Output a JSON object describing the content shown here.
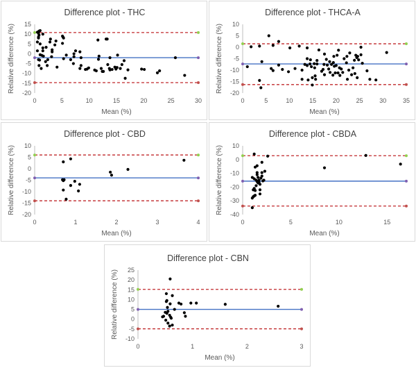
{
  "colors": {
    "points": "#000000",
    "mean_line": "#4472C4",
    "limit_lines": "#C0282B",
    "upper_marker": "#92D050",
    "mean_marker": "#7F5FB0",
    "lower_marker": "#C0504D",
    "axis": "#BFBFBF"
  },
  "chart_data": [
    {
      "type": "scatter",
      "title": "Difference plot - THC",
      "xlabel": "Mean (%)",
      "ylabel": "Relative difference (%)",
      "xlim": [
        0,
        30
      ],
      "xticks": [
        0,
        5,
        10,
        15,
        20,
        25,
        30
      ],
      "ylim": [
        -20,
        15
      ],
      "yticks": [
        -20,
        -15,
        -10,
        -5,
        0,
        5,
        10,
        15
      ],
      "grid": false,
      "mean": -2,
      "upper_limit": 10.8,
      "lower_limit": -14.7,
      "points": [
        [
          0.5,
          11
        ],
        [
          0.8,
          11.5
        ],
        [
          1,
          11.8
        ],
        [
          0.7,
          10.5
        ],
        [
          0.8,
          9.5
        ],
        [
          0.7,
          8.5
        ],
        [
          0.7,
          8
        ],
        [
          1.5,
          10
        ],
        [
          0.5,
          6
        ],
        [
          1,
          5
        ],
        [
          0.5,
          1.5
        ],
        [
          1.5,
          3
        ],
        [
          2.1,
          3.3
        ],
        [
          1.5,
          1.5
        ],
        [
          1,
          -0.5
        ],
        [
          1.3,
          -0.8
        ],
        [
          1.6,
          -1.2
        ],
        [
          0.7,
          -3
        ],
        [
          0.9,
          -3.2
        ],
        [
          0.8,
          -6
        ],
        [
          1.2,
          -7.5
        ],
        [
          2,
          -4
        ],
        [
          2.4,
          -3
        ],
        [
          2.3,
          -6
        ],
        [
          2.8,
          6
        ],
        [
          2.9,
          7.5
        ],
        [
          3.2,
          2
        ],
        [
          3.2,
          1
        ],
        [
          3.1,
          -1.5
        ],
        [
          3.7,
          4.5
        ],
        [
          3.9,
          6.5
        ],
        [
          4.1,
          -6.8
        ],
        [
          5.1,
          9
        ],
        [
          5.2,
          8.5
        ],
        [
          5.3,
          8
        ],
        [
          5.1,
          5.3
        ],
        [
          5.3,
          -2.5
        ],
        [
          5.8,
          -0.7
        ],
        [
          6.6,
          -3
        ],
        [
          7.1,
          -5
        ],
        [
          7.2,
          0
        ],
        [
          7.2,
          -1.5
        ],
        [
          7.5,
          1.5
        ],
        [
          8.3,
          1
        ],
        [
          8.5,
          -2
        ],
        [
          8.5,
          -6
        ],
        [
          8.3,
          -7.5
        ],
        [
          9.3,
          -8
        ],
        [
          9.6,
          -7.8
        ],
        [
          9.9,
          -7.2
        ],
        [
          11,
          -8.3
        ],
        [
          11.3,
          -8.7
        ],
        [
          11.6,
          7
        ],
        [
          11.7,
          -2.8
        ],
        [
          11.8,
          -1.2
        ],
        [
          12.2,
          -7.5
        ],
        [
          12.4,
          -9
        ],
        [
          12.6,
          -9
        ],
        [
          13.1,
          7.5
        ],
        [
          13.3,
          7.5
        ],
        [
          13.4,
          -5.5
        ],
        [
          13.7,
          -7.5
        ],
        [
          13.8,
          -8.2
        ],
        [
          13.8,
          -2
        ],
        [
          14.2,
          -8
        ],
        [
          14.7,
          -6.8
        ],
        [
          14.9,
          -7.8
        ],
        [
          15.1,
          -7
        ],
        [
          15.2,
          -0.7
        ],
        [
          15.7,
          -7.5
        ],
        [
          16,
          -5.5
        ],
        [
          16.4,
          -3.5
        ],
        [
          16.6,
          -12.5
        ],
        [
          17.1,
          -8.2
        ],
        [
          19.6,
          -7.8
        ],
        [
          20.1,
          -8
        ],
        [
          22.5,
          -9.7
        ],
        [
          22.9,
          -8.7
        ],
        [
          25.8,
          -2
        ],
        [
          27.5,
          -11
        ]
      ]
    },
    {
      "type": "scatter",
      "title": "Difference plot - THCA-A",
      "xlabel": "Mean (%)",
      "ylabel": "Relative difference (%)",
      "xlim": [
        0,
        35
      ],
      "xticks": [
        0,
        5,
        10,
        15,
        20,
        25,
        30,
        35
      ],
      "ylim": [
        -20,
        10
      ],
      "yticks": [
        -20,
        -15,
        -10,
        -5,
        0,
        5,
        10
      ],
      "grid": false,
      "mean": -7.3,
      "upper_limit": 1.5,
      "lower_limit": -16.3,
      "points": [
        [
          1,
          -8.5
        ],
        [
          1.8,
          0.2
        ],
        [
          3.6,
          0.5
        ],
        [
          3.6,
          -14.5
        ],
        [
          3.9,
          -17.7
        ],
        [
          4.1,
          -6.3
        ],
        [
          5.6,
          5
        ],
        [
          6.1,
          -9.3
        ],
        [
          6.5,
          0.8
        ],
        [
          6.5,
          -10.2
        ],
        [
          7.7,
          2.5
        ],
        [
          7.7,
          -7.8
        ],
        [
          8.5,
          -9.7
        ],
        [
          9.8,
          -10.7
        ],
        [
          10.1,
          -0.3
        ],
        [
          11.2,
          -9.3
        ],
        [
          12.1,
          0.5
        ],
        [
          12.7,
          -10
        ],
        [
          12.7,
          -14
        ],
        [
          13.3,
          -7.5
        ],
        [
          13.8,
          -0.3
        ],
        [
          13.8,
          -5
        ],
        [
          13.8,
          -8
        ],
        [
          14,
          -14.3
        ],
        [
          14.4,
          -7.3
        ],
        [
          14.5,
          -5.5
        ],
        [
          14.7,
          -8.5
        ],
        [
          14.9,
          -13.3
        ],
        [
          14.9,
          -16.5
        ],
        [
          15.3,
          -7.2
        ],
        [
          15.4,
          -9
        ],
        [
          15.5,
          -12.5
        ],
        [
          15.6,
          -14
        ],
        [
          15.9,
          -7.3
        ],
        [
          15.9,
          -5.8
        ],
        [
          16.3,
          -1.2
        ],
        [
          16.9,
          -10.5
        ],
        [
          17.2,
          -9.7
        ],
        [
          17.4,
          -7.5
        ],
        [
          17.5,
          -12
        ],
        [
          17.5,
          -3
        ],
        [
          17.9,
          -5.3
        ],
        [
          18.1,
          -7.8
        ],
        [
          18.4,
          -9.5
        ],
        [
          18.6,
          -6.3
        ],
        [
          18.7,
          -11
        ],
        [
          19,
          -7.5
        ],
        [
          19.3,
          -12.2
        ],
        [
          19.4,
          -6.7
        ],
        [
          19.5,
          -4
        ],
        [
          19.6,
          -8.3
        ],
        [
          19.8,
          -11.2
        ],
        [
          20,
          -8
        ],
        [
          20.2,
          -3.5
        ],
        [
          20.4,
          -11.2
        ],
        [
          20.5,
          -1.3
        ],
        [
          20.7,
          -9
        ],
        [
          20.8,
          -12.3
        ],
        [
          21.1,
          -9.5
        ],
        [
          21.4,
          -11
        ],
        [
          21.7,
          -5
        ],
        [
          22.2,
          -6.8
        ],
        [
          22.3,
          -4
        ],
        [
          22.4,
          -14
        ],
        [
          22.7,
          -10
        ],
        [
          22.9,
          -2.5
        ],
        [
          23.3,
          -12
        ],
        [
          23.6,
          -9
        ],
        [
          23.9,
          -5.7
        ],
        [
          24,
          -11.5
        ],
        [
          24.2,
          -3.5
        ],
        [
          24.4,
          -4.5
        ],
        [
          24.5,
          -13.3
        ],
        [
          24.6,
          -4
        ],
        [
          24.8,
          -5.5
        ],
        [
          25.3,
          0
        ],
        [
          25.3,
          -3.3
        ],
        [
          25.6,
          -7
        ],
        [
          26.6,
          -10.3
        ],
        [
          27.2,
          -14
        ],
        [
          28.5,
          -14.3
        ],
        [
          30.8,
          -2.3
        ]
      ]
    },
    {
      "type": "scatter",
      "title": "Difference plot - CBD",
      "xlabel": "Mean (%)",
      "ylabel": "Relative difference (%)",
      "xlim": [
        0,
        4
      ],
      "xticks": [
        0,
        1,
        2,
        3,
        4
      ],
      "ylim": [
        -20,
        10
      ],
      "yticks": [
        -20,
        -15,
        -10,
        -5,
        0,
        5,
        10
      ],
      "grid": false,
      "mean": -4,
      "upper_limit": 6,
      "lower_limit": -14,
      "points": [
        [
          0.7,
          3
        ],
        [
          0.68,
          -4.8
        ],
        [
          0.7,
          -5.2
        ],
        [
          0.72,
          -4.8
        ],
        [
          0.7,
          -9.3
        ],
        [
          0.77,
          -13.3
        ],
        [
          0.88,
          4.3
        ],
        [
          0.88,
          -7.3
        ],
        [
          0.98,
          -5.5
        ],
        [
          1.07,
          -9.7
        ],
        [
          1.1,
          -6.8
        ],
        [
          1.85,
          -1.5
        ],
        [
          1.88,
          -2.8
        ],
        [
          2.28,
          -0.3
        ],
        [
          3.65,
          3.7
        ]
      ]
    },
    {
      "type": "scatter",
      "title": "Difference plot - CBDA",
      "xlabel": "Mean (%)",
      "ylabel": "Relative difference (%)",
      "xlim": [
        0,
        17
      ],
      "xticks": [
        0,
        5,
        10,
        15
      ],
      "ylim": [
        -40,
        10
      ],
      "yticks": [
        -40,
        -30,
        -20,
        -10,
        0,
        10
      ],
      "grid": false,
      "mean": -15.7,
      "upper_limit": 2.8,
      "lower_limit": -33.8,
      "points": [
        [
          1.2,
          4
        ],
        [
          2.6,
          2.5
        ],
        [
          8.5,
          -6
        ],
        [
          12.8,
          3
        ],
        [
          16.4,
          -3.3
        ],
        [
          1.0,
          -35
        ],
        [
          1.0,
          -28
        ],
        [
          1.1,
          -27
        ],
        [
          1.2,
          -26.5
        ],
        [
          1.3,
          -26
        ],
        [
          1.1,
          -22
        ],
        [
          1.2,
          -21
        ],
        [
          1.3,
          -22.5
        ],
        [
          1.0,
          -13
        ],
        [
          1.2,
          -14
        ],
        [
          1.3,
          -5.5
        ],
        [
          1.5,
          -4.5
        ],
        [
          1.5,
          -9.5
        ],
        [
          1.5,
          -11
        ],
        [
          1.4,
          -15
        ],
        [
          1.4,
          -19
        ],
        [
          1.6,
          -17
        ],
        [
          1.6,
          -13
        ],
        [
          1.7,
          -15
        ],
        [
          1.8,
          -18
        ],
        [
          1.8,
          -22
        ],
        [
          1.8,
          -25
        ],
        [
          1.9,
          -13.5
        ],
        [
          2.0,
          -2
        ],
        [
          2.0,
          -9.5
        ],
        [
          2.0,
          -12
        ],
        [
          2.1,
          -15.5
        ],
        [
          2.2,
          -15
        ],
        [
          2.3,
          -8.5
        ],
        [
          1.7,
          -16.5
        ],
        [
          1.5,
          -16
        ]
      ]
    },
    {
      "type": "scatter",
      "title": "Difference plot - CBN",
      "xlabel": "Mean (%)",
      "ylabel": "Relative difference (%)",
      "xlim": [
        0,
        3
      ],
      "xticks": [
        0,
        1,
        2,
        3
      ],
      "ylim": [
        -10,
        25
      ],
      "yticks": [
        -10,
        -5,
        0,
        5,
        10,
        15,
        20,
        25
      ],
      "grid": false,
      "mean": 5,
      "upper_limit": 15.2,
      "lower_limit": -4.9,
      "points": [
        [
          0.59,
          20.5
        ],
        [
          0.52,
          13
        ],
        [
          0.63,
          12
        ],
        [
          0.52,
          9
        ],
        [
          0.53,
          9.5
        ],
        [
          0.59,
          7.8
        ],
        [
          0.54,
          6
        ],
        [
          0.5,
          3.5
        ],
        [
          0.53,
          3
        ],
        [
          0.55,
          4
        ],
        [
          0.67,
          5
        ],
        [
          0.45,
          1.2
        ],
        [
          0.47,
          1.5
        ],
        [
          0.51,
          -0.5
        ],
        [
          0.58,
          2
        ],
        [
          0.6,
          1
        ],
        [
          0.61,
          0.5
        ],
        [
          0.55,
          -2
        ],
        [
          0.58,
          -3.5
        ],
        [
          0.63,
          -3
        ],
        [
          0.75,
          8.2
        ],
        [
          0.79,
          7.7
        ],
        [
          0.85,
          3.3
        ],
        [
          0.87,
          1.5
        ],
        [
          0.97,
          8.2
        ],
        [
          1.07,
          8.2
        ],
        [
          1.6,
          7.6
        ],
        [
          2.57,
          6.6
        ]
      ]
    }
  ]
}
